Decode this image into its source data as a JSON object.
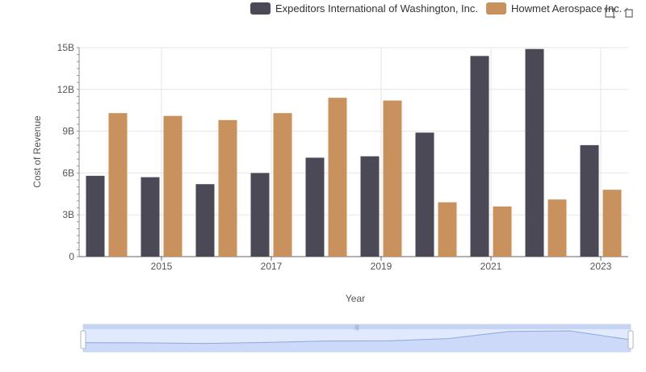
{
  "colors": {
    "series0": "#4a4955",
    "series1": "#c9915d"
  },
  "legend": {
    "items": [
      {
        "label": "Expeditors International of Washington, Inc.",
        "color": "#4a4955"
      },
      {
        "label": "Howmet Aerospace Inc.",
        "color": "#c9915d"
      }
    ]
  },
  "toolbox": {
    "icons": [
      "zoom-icon",
      "restore-icon"
    ]
  },
  "chart_data": {
    "type": "bar",
    "categories": [
      "2014",
      "2015",
      "2016",
      "2017",
      "2018",
      "2019",
      "2020",
      "2021",
      "2022",
      "2023"
    ],
    "x_tick_labels": [
      "2015",
      "2017",
      "2019",
      "2021",
      "2023"
    ],
    "series": [
      {
        "name": "Expeditors International of Washington, Inc.",
        "values": [
          5.8,
          5.7,
          5.2,
          6.0,
          7.1,
          7.2,
          8.9,
          14.4,
          14.9,
          8.0
        ]
      },
      {
        "name": "Howmet Aerospace Inc.",
        "values": [
          10.3,
          10.1,
          9.8,
          10.3,
          11.4,
          11.2,
          3.9,
          3.6,
          4.1,
          4.8
        ]
      }
    ],
    "ylim": [
      0,
      15
    ],
    "yticks": [
      0,
      3,
      6,
      9,
      12,
      15
    ],
    "ytick_labels": [
      "0",
      "3B",
      "6B",
      "9B",
      "12B",
      "15B"
    ],
    "xlabel": "Year",
    "ylabel": "Cost of Revenue",
    "grid": true,
    "legend_position": "top-right",
    "zoom_slider": true
  }
}
